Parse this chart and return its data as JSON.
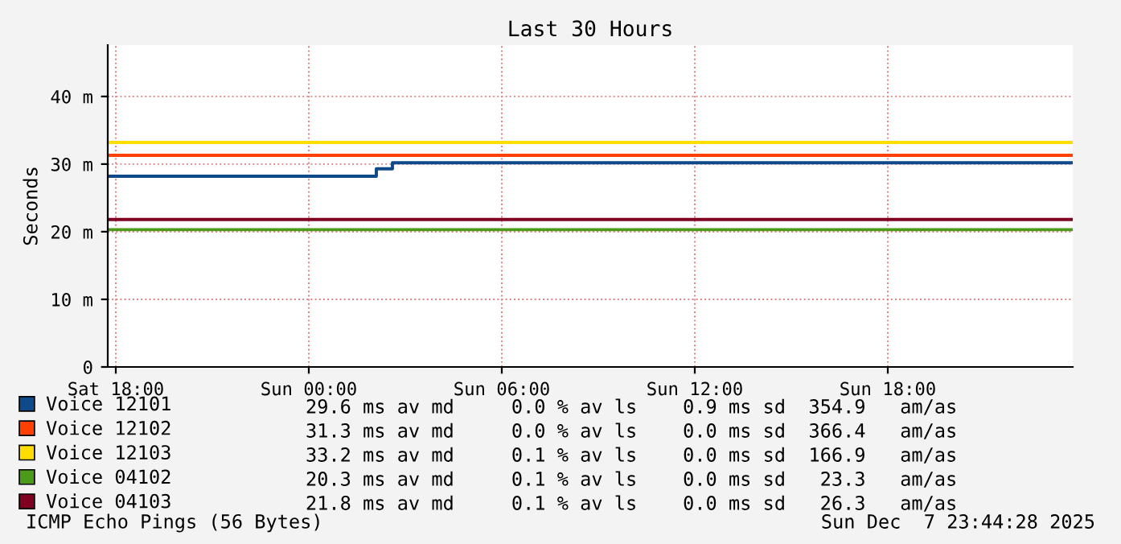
{
  "chart_data": {
    "type": "step",
    "title": "Last 30 Hours",
    "ylabel": "Seconds",
    "xlim": [
      "2025-12-06T17:45",
      "2025-12-07T23:45"
    ],
    "xticks": [
      {
        "value": "2025-12-06T18:00",
        "label": "Sat 18:00"
      },
      {
        "value": "2025-12-07T00:00",
        "label": "Sun 00:00"
      },
      {
        "value": "2025-12-07T06:00",
        "label": "Sun 06:00"
      },
      {
        "value": "2025-12-07T12:00",
        "label": "Sun 12:00"
      },
      {
        "value": "2025-12-07T18:00",
        "label": "Sun 18:00"
      }
    ],
    "ylim": [
      0,
      47.6
    ],
    "yticks": [
      0,
      {
        "value": 10,
        "label": "10 m"
      },
      {
        "value": 20,
        "label": "20 m"
      },
      {
        "value": 30,
        "label": "30 m"
      },
      {
        "value": 40,
        "label": "40 m"
      }
    ],
    "series": [
      {
        "name": "Voice 12101",
        "color": "#0e4a8a",
        "x": [
          "2025-12-06T17:45",
          "2025-12-07T02:00",
          "2025-12-07T02:06",
          "2025-12-07T02:36",
          "2025-12-07T23:45"
        ],
        "values": [
          28.2,
          28.2,
          29.3,
          30.2,
          30.2
        ]
      },
      {
        "name": "Voice 12102",
        "color": "#ff4000",
        "x": [
          "2025-12-06T17:45",
          "2025-12-07T23:45"
        ],
        "values": [
          31.3,
          31.3
        ]
      },
      {
        "name": "Voice 12103",
        "color": "#ffdd00",
        "x": [
          "2025-12-06T17:45",
          "2025-12-07T23:45"
        ],
        "values": [
          33.2,
          33.2
        ]
      },
      {
        "name": "Voice 04102",
        "color": "#4c9a1a",
        "x": [
          "2025-12-06T17:45",
          "2025-12-07T23:45"
        ],
        "values": [
          20.3,
          20.3
        ]
      },
      {
        "name": "Voice 04103",
        "color": "#7f0020",
        "x": [
          "2025-12-06T17:45",
          "2025-12-07T23:45"
        ],
        "values": [
          21.8,
          21.8
        ]
      }
    ],
    "annotations": [
      "29.6 ms av md     0.0 % av ls    0.9 ms sd  354.9   am/as",
      "31.3 ms av md     0.0 % av ls    0.0 ms sd  366.4   am/as",
      "33.2 ms av md     0.1 % av ls    0.0 ms sd  166.9   am/as",
      "20.3 ms av md     0.1 % av ls    0.0 ms sd   23.3   am/as",
      "21.8 ms av md     0.1 % av ls    0.0 ms sd   26.3   am/as",
      "ICMP Echo Pings (56 Bytes)",
      "Sun Dec  7 23:44:28 2025"
    ],
    "grid": true,
    "legend": "bottom",
    "marker": "none",
    "line_style": "solid"
  }
}
